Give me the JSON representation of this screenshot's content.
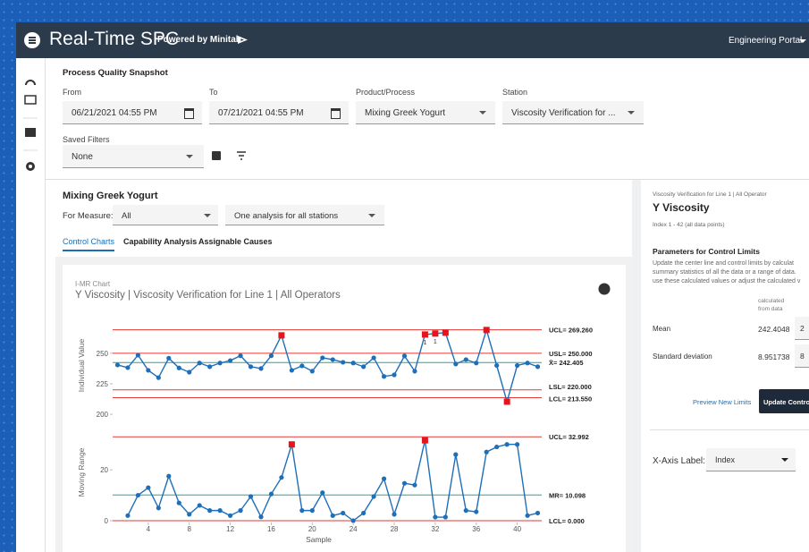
{
  "header": {
    "title": "Real-Time SPC",
    "powered": "Powered by Minitab",
    "portal": "Engineering Portal"
  },
  "snapshot": {
    "title": "Process Quality Snapshot",
    "from_label": "From",
    "from": "06/21/2021 04:55 PM",
    "to_label": "To",
    "to": "07/21/2021 04:55 PM",
    "product_label": "Product/Process",
    "product": "Mixing Greek Yogurt",
    "station_label": "Station",
    "station": "Viscosity Verification for ...",
    "saved_label": "Saved Filters",
    "saved": "None"
  },
  "analysis": {
    "title": "Mixing Greek Yogurt",
    "measure_label": "For Measure:",
    "measure": "All",
    "stations": "One analysis for all stations",
    "tabs": [
      "Control Charts",
      "Capability Analysis",
      "Assignable Causes"
    ]
  },
  "chart_data": {
    "type": "control",
    "subtitle": "I-MR Chart",
    "title": "Y Viscosity | Viscosity Verification for Line 1 | All Operators",
    "x_label": "Sample",
    "xlim": [
      0,
      43
    ],
    "xticks": [
      4,
      8,
      12,
      16,
      20,
      24,
      28,
      32,
      36,
      40
    ],
    "point_color": "#1f6fb8",
    "flag_color": "#e8141b",
    "charts": [
      {
        "y_label": "Individual Value",
        "ylim": [
          200,
          280
        ],
        "yticks": [
          200,
          225,
          250
        ],
        "x": [
          1,
          2,
          3,
          4,
          5,
          6,
          7,
          8,
          9,
          10,
          11,
          12,
          13,
          14,
          15,
          16,
          17,
          18,
          19,
          20,
          21,
          22,
          23,
          24,
          25,
          26,
          27,
          28,
          29,
          30,
          31,
          32,
          33,
          34,
          35,
          36,
          37,
          38,
          39,
          40,
          41,
          42
        ],
        "values": [
          240.4,
          238.2,
          248.5,
          236,
          230,
          246,
          238,
          234.5,
          242,
          239,
          242,
          244,
          248,
          239,
          237.5,
          248,
          264.7,
          236,
          239.7,
          235.3,
          246.3,
          244.8,
          242.6,
          242,
          239,
          246.3,
          231,
          232.3,
          247.8,
          235.3,
          265.4,
          266.2,
          266.9,
          241.2,
          244.8,
          242,
          269.1,
          240,
          210.3,
          240,
          242,
          239
        ],
        "red_points": [
          16,
          30,
          31,
          32,
          36,
          38
        ],
        "flags": [
          {
            "point": 30,
            "label": "1"
          },
          {
            "point": 31,
            "label": "1"
          }
        ],
        "limits": [
          {
            "label": "UCL= 269.260",
            "value": 269.26,
            "color": "#e53935"
          },
          {
            "label": "USL= 250.000",
            "value": 250,
            "color": "#e53935"
          },
          {
            "label": "X̄= 242.405",
            "value": 242.405,
            "color": "#26a69a"
          },
          {
            "label": "LSL= 220.000",
            "value": 220,
            "color": "#e53935"
          },
          {
            "label": "LCL= 213.550",
            "value": 213.55,
            "color": "#e53935"
          }
        ]
      },
      {
        "y_label": "Moving Range",
        "ylim": [
          0,
          38
        ],
        "yticks": [
          0,
          20
        ],
        "x": [
          2,
          3,
          4,
          5,
          6,
          7,
          8,
          9,
          10,
          11,
          12,
          13,
          14,
          15,
          16,
          17,
          18,
          19,
          20,
          21,
          22,
          23,
          24,
          25,
          26,
          27,
          28,
          29,
          30,
          31,
          32,
          33,
          34,
          35,
          36,
          37,
          38,
          39,
          40,
          41,
          42
        ],
        "values": [
          2,
          10,
          13,
          5,
          17.5,
          7,
          2.5,
          6,
          4,
          4,
          2,
          4,
          9.5,
          1.5,
          10.5,
          17,
          30,
          4,
          4,
          11,
          2,
          3,
          0,
          3,
          9.5,
          16.5,
          2.5,
          14.7,
          14,
          31.6,
          1.4,
          1.4,
          26,
          4,
          3.5,
          27,
          29,
          30,
          30,
          2,
          3
        ],
        "red_points": [
          16,
          29
        ],
        "limits": [
          {
            "label": "UCL= 32.992",
            "value": 32.992,
            "color": "#e53935"
          },
          {
            "label": "MR= 10.098",
            "value": 10.098,
            "color": "#26a69a"
          },
          {
            "label": "LCL= 0.000",
            "value": 0,
            "color": "#e53935"
          }
        ]
      }
    ]
  },
  "panel": {
    "context": "Viscosity Verification for Line 1 | All Operator",
    "title": "Y Viscosity",
    "range": "Index 1 - 42 (all data points)",
    "params_title": "Parameters for Control Limits",
    "description": [
      "Update the center line and control limits by calculat",
      "summary statistics of all the data or a range of data.",
      "use these calculated values or adjust the calculated v"
    ],
    "calc_header": [
      "calculated",
      "from data"
    ],
    "mean_label": "Mean",
    "mean": "242.4048",
    "mean_input": "2",
    "sd_label": "Standard deviation",
    "sd": "8.951738",
    "sd_input": "8",
    "preview": "Preview New Limits",
    "update": "Update Contro",
    "xaxis_label": "X-Axis Label:",
    "xaxis": "Index"
  }
}
